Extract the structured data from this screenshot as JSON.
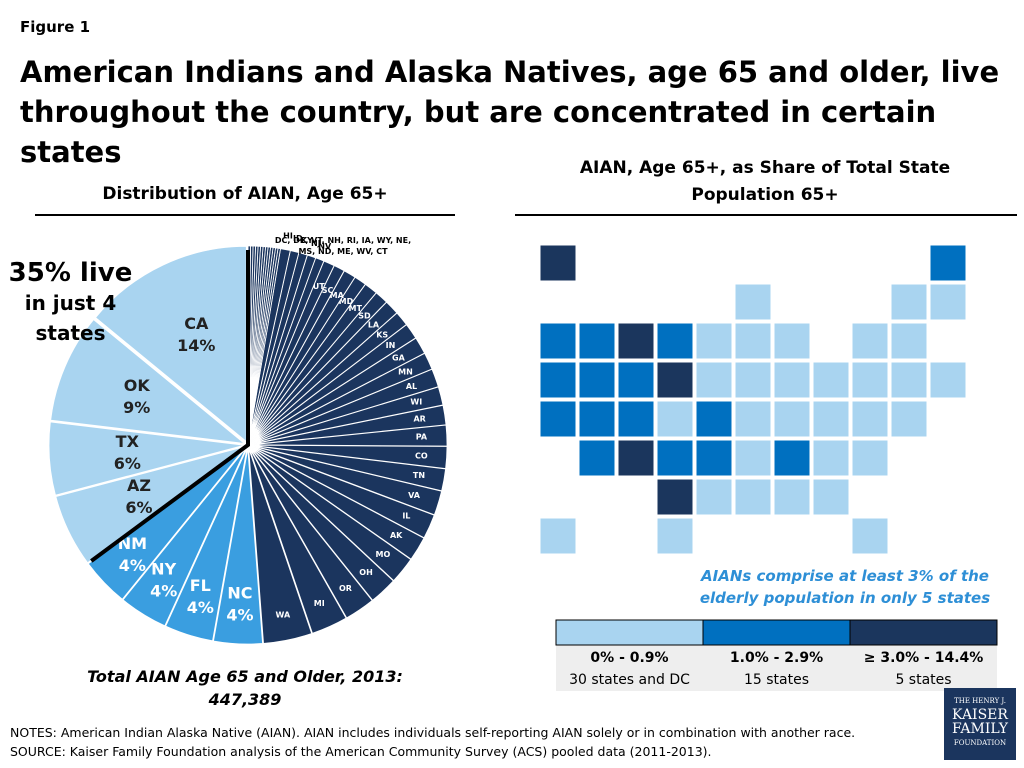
{
  "figure_label": "Figure 1",
  "title": "American Indians and Alaska Natives, age 65 and older, live throughout the country, but are concentrated in certain states",
  "chart_data": [
    {
      "type": "pie",
      "title": "Distribution of AIAN, Age 65+",
      "annotation": [
        "35% live",
        "in just 4",
        "states"
      ],
      "categories": [
        "CA",
        "OK",
        "TX",
        "AZ",
        "NM",
        "NY",
        "FL",
        "NC",
        "WA",
        "MI",
        "OR",
        "OH",
        "MO",
        "AK",
        "IL",
        "VA",
        "TN",
        "CO",
        "PA",
        "AR",
        "WI",
        "AL",
        "MN",
        "GA",
        "IN",
        "KS",
        "LA",
        "SD",
        "MT",
        "MD",
        "MA",
        "SC",
        "UT",
        "NV",
        "NJ",
        "KY",
        "ID",
        "HI",
        null,
        null,
        null,
        null,
        null,
        null,
        null,
        null,
        null,
        null,
        null,
        null,
        null
      ],
      "values": [
        14,
        9,
        6,
        6,
        4,
        4,
        4,
        4,
        4,
        3,
        2.5,
        2.3,
        2.2,
        2,
        2,
        2,
        1.8,
        1.8,
        1.7,
        1.6,
        1.5,
        1.5,
        1.4,
        1.4,
        1.3,
        1.2,
        1.2,
        1.1,
        1.1,
        1,
        1,
        0.9,
        0.9,
        0.7,
        0.7,
        0.7,
        0.7,
        0.8,
        0.2,
        0.2,
        0.2,
        0.2,
        0.2,
        0.2,
        0.2,
        0.2,
        0.2,
        0.2,
        0.2,
        0.2,
        0.2
      ],
      "value_labels": [
        "14%",
        "9%",
        "6%",
        "6%",
        "4%",
        "4%",
        "4%",
        "4%",
        null,
        null,
        null,
        null,
        null,
        null,
        null,
        null,
        null,
        null,
        null,
        null,
        null,
        null,
        null,
        null,
        null,
        null,
        null,
        null,
        null,
        null,
        null,
        null,
        null,
        null,
        null,
        null,
        null,
        null,
        null,
        null,
        null,
        null,
        null,
        null,
        null,
        null,
        null,
        null,
        null,
        null,
        null
      ],
      "colors": [
        "#a9d4f0",
        "#a9d4f0",
        "#a9d4f0",
        "#a9d4f0",
        "#3a9ee0",
        "#3a9ee0",
        "#3a9ee0",
        "#3a9ee0",
        "#1b355e",
        "#1b355e",
        "#1b355e",
        "#1b355e",
        "#1b355e",
        "#1b355e",
        "#1b355e",
        "#1b355e",
        "#1b355e",
        "#1b355e",
        "#1b355e",
        "#1b355e",
        "#1b355e",
        "#1b355e",
        "#1b355e",
        "#1b355e",
        "#1b355e",
        "#1b355e",
        "#1b355e",
        "#1b355e",
        "#1b355e",
        "#1b355e",
        "#1b355e",
        "#1b355e",
        "#1b355e",
        "#1b355e",
        "#1b355e",
        "#1b355e",
        "#1b355e",
        "#1b355e",
        "#1b355e",
        "#1b355e",
        "#1b355e",
        "#1b355e",
        "#1b355e",
        "#1b355e",
        "#1b355e",
        "#1b355e",
        "#1b355e",
        "#1b355e",
        "#1b355e",
        "#1b355e",
        "#1b355e"
      ],
      "group_label": "DC, DE, VT, NH, RI, IA, WY, NE, MS, ND, ME, WV, CT",
      "total_label": "Total AIAN Age 65 and Older, 2013: 447,389"
    },
    {
      "type": "map",
      "title": "AIAN, Age 65+, as Share of Total State Population 65+",
      "annotation": "AIANs comprise at least 3% of the elderly population in only 5 states",
      "legend": [
        {
          "color": "#a9d4f0",
          "range": "0% - 0.9%",
          "count_label": "30 states and DC"
        },
        {
          "color": "#0070c0",
          "range": "1.0% - 2.9%",
          "count_label": "15 states"
        },
        {
          "color": "#1b365d",
          "range": "≥ 3.0% - 14.4%",
          "count_label": "5 states"
        }
      ]
    }
  ],
  "notes": [
    "NOTES: American Indian Alaska Native (AIAN).  AIAN includes individuals self-reporting AIAN solely or in combination with another race.",
    "SOURCE: Kaiser Family Foundation analysis of  the American Community Survey (ACS) pooled data (2011-2013)."
  ],
  "logo": [
    "THE HENRY J.",
    "KAISER",
    "FAMILY",
    "FOUNDATION"
  ]
}
